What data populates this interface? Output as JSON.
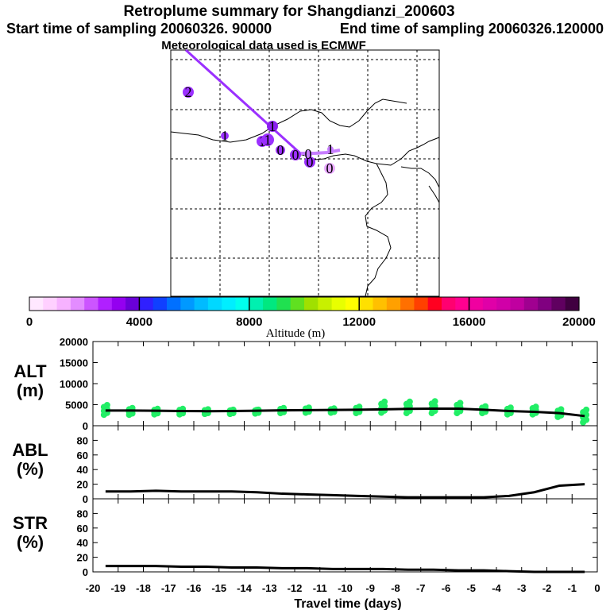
{
  "header": {
    "title": "Retroplume summary for Shangdianzi_200603",
    "start_label": "Start time of sampling 20060326. 90000",
    "end_label": "End time of sampling 20060326.120000",
    "met_label": "Meteorological data used is ECMWF"
  },
  "colors": {
    "plume_track": "#9b30ff",
    "plume_track_light": "#c77dff",
    "alt_points": "#22ee66",
    "median_line": "#000000"
  },
  "colorbar": {
    "label": "Altitude (m)",
    "ticks": [
      "0",
      "4000",
      "8000",
      "12000",
      "16000",
      "20000"
    ],
    "colors": [
      "#ffe8ff",
      "#ffd0ff",
      "#f7b2ff",
      "#e38cff",
      "#cc55ff",
      "#b020ff",
      "#9400f0",
      "#6a00d8",
      "#3020ff",
      "#1040ff",
      "#0070ff",
      "#0099ff",
      "#00bbff",
      "#00d8ff",
      "#00eeff",
      "#00ffee",
      "#00f0b0",
      "#00e880",
      "#20e050",
      "#60e020",
      "#a0e000",
      "#c8f000",
      "#e8ff00",
      "#ffff00",
      "#ffe000",
      "#ffc000",
      "#ffa000",
      "#ff7000",
      "#ff4000",
      "#ff0020",
      "#ff0070",
      "#ff0090",
      "#f000a0",
      "#e000a8",
      "#d000a8",
      "#c000a0",
      "#a00090",
      "#800080",
      "#600060",
      "#400040"
    ]
  },
  "map": {
    "markers": [
      {
        "label": "2",
        "color": "#9b30ff"
      },
      {
        "label": "1",
        "color": "#9b30ff"
      },
      {
        "label": "1",
        "color": "#9b30ff"
      },
      {
        "label": "1",
        "color": "#8a20ee"
      },
      {
        "label": "1",
        "color": "#9b30ff"
      },
      {
        "label": "0",
        "color": "#9b30ff"
      },
      {
        "label": "0",
        "color": "#9b30ff"
      },
      {
        "label": "0",
        "color": "#9b30ff"
      },
      {
        "label": "0",
        "color": "#c77dff"
      },
      {
        "label": "1",
        "color": "#c77dff"
      },
      {
        "label": "0",
        "color": "#e8a8ff"
      }
    ]
  },
  "chart_data": [
    {
      "type": "scatter",
      "panel": "ALT",
      "ylabel_line1": "ALT",
      "ylabel_line2": "(m)",
      "ylim": [
        0,
        20000
      ],
      "yticks": [
        "20000",
        "15000",
        "10000",
        "5000",
        "0"
      ],
      "x": [
        -19.5,
        -18.5,
        -17.5,
        -16.5,
        -15.5,
        -14.5,
        -13.5,
        -12.5,
        -11.5,
        -10.5,
        -9.5,
        -8.5,
        -7.5,
        -6.5,
        -5.5,
        -4.5,
        -3.5,
        -2.5,
        -1.5,
        -0.5
      ],
      "median": [
        3600,
        3600,
        3550,
        3500,
        3450,
        3500,
        3550,
        3650,
        3700,
        3750,
        3800,
        3900,
        4000,
        4050,
        4050,
        3800,
        3500,
        3300,
        3000,
        2300
      ],
      "spread_low": [
        2600,
        2600,
        2700,
        2700,
        2800,
        2800,
        2900,
        3000,
        3100,
        3100,
        3000,
        3100,
        3000,
        3000,
        3000,
        3000,
        2700,
        2700,
        2100,
        800
      ],
      "spread_high": [
        4900,
        4200,
        4000,
        4000,
        3900,
        3800,
        3800,
        4200,
        4300,
        4100,
        4500,
        5700,
        5700,
        5800,
        5400,
        4600,
        4300,
        4500,
        3900,
        3800
      ]
    },
    {
      "type": "line",
      "panel": "ABL",
      "ylabel_line1": "ABL",
      "ylabel_line2": "(%)",
      "ylim": [
        0,
        100
      ],
      "yticks": [
        "80",
        "60",
        "40",
        "20",
        "0"
      ],
      "x": [
        -19.5,
        -18.5,
        -17.5,
        -16.5,
        -15.5,
        -14.5,
        -13.5,
        -12.5,
        -11.5,
        -10.5,
        -9.5,
        -8.5,
        -7.5,
        -6.5,
        -5.5,
        -4.5,
        -3.5,
        -2.5,
        -1.5,
        -0.5
      ],
      "values": [
        10,
        10,
        11,
        10,
        10,
        10,
        9,
        7,
        6,
        5,
        4,
        3,
        2,
        2,
        2,
        2,
        4,
        9,
        18,
        20
      ]
    },
    {
      "type": "line",
      "panel": "STR",
      "ylabel_line1": "STR",
      "ylabel_line2": "(%)",
      "ylim": [
        0,
        100
      ],
      "yticks": [
        "80",
        "60",
        "40",
        "20",
        "0"
      ],
      "x": [
        -19.5,
        -18.5,
        -17.5,
        -16.5,
        -15.5,
        -14.5,
        -13.5,
        -12.5,
        -11.5,
        -10.5,
        -9.5,
        -8.5,
        -7.5,
        -6.5,
        -5.5,
        -4.5,
        -3.5,
        -2.5,
        -1.5,
        -0.5
      ],
      "values": [
        8,
        8,
        8,
        7,
        7,
        6,
        6,
        5,
        5,
        4,
        4,
        4,
        3,
        3,
        2,
        2,
        1,
        0,
        0,
        0
      ]
    }
  ],
  "xaxis": {
    "label": "Travel time (days)",
    "ticks": [
      "-20",
      "-19",
      "-18",
      "-17",
      "-16",
      "-15",
      "-14",
      "-13",
      "-12",
      "-11",
      "-10",
      "-9",
      "-8",
      "-7",
      "-6",
      "-5",
      "-4",
      "-3",
      "-2",
      "-1",
      "0"
    ]
  }
}
